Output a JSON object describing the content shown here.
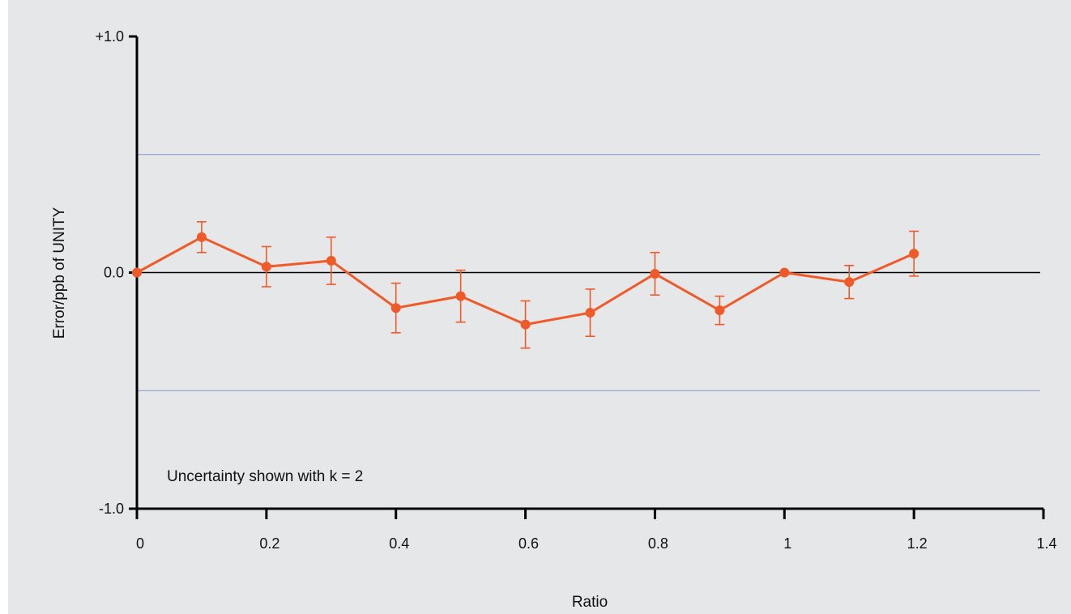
{
  "chart_data": {
    "type": "line",
    "title": "",
    "xlabel": "Ratio",
    "ylabel": "Error/ppb of UNITY",
    "xlim": [
      0,
      1.4
    ],
    "ylim": [
      -1.0,
      1.0
    ],
    "x_ticks": [
      0,
      0.2,
      0.4,
      0.6,
      0.8,
      1.0,
      1.2,
      1.4
    ],
    "x_tick_labels": [
      "0",
      "0.2",
      "0.4",
      "0.6",
      "0.8",
      "1",
      "1.2",
      "1.4"
    ],
    "y_ticks": [
      1.0,
      0.0,
      -1.0
    ],
    "y_tick_labels": [
      "+1.0",
      "0.0",
      "-1.0"
    ],
    "reference_lines": [
      0.5,
      -0.5
    ],
    "annotation": "Uncertainty shown with k = 2",
    "colors": {
      "series": "#f05a28",
      "reference": "#8a8fd4",
      "axis": "#000000",
      "background": "#e6e7e9"
    },
    "grid": false,
    "series": [
      {
        "x": [
          0,
          0.1,
          0.2,
          0.3,
          0.4,
          0.5,
          0.6,
          0.7,
          0.8,
          0.9,
          1.0,
          1.1,
          1.2
        ],
        "y": [
          0.0,
          0.15,
          0.025,
          0.05,
          -0.15,
          -0.1,
          -0.22,
          -0.17,
          -0.005,
          -0.16,
          0.0,
          -0.04,
          0.08
        ],
        "err": [
          0.0,
          0.065,
          0.085,
          0.1,
          0.105,
          0.11,
          0.1,
          0.1,
          0.09,
          0.06,
          0.0,
          0.07,
          0.095
        ]
      }
    ]
  }
}
